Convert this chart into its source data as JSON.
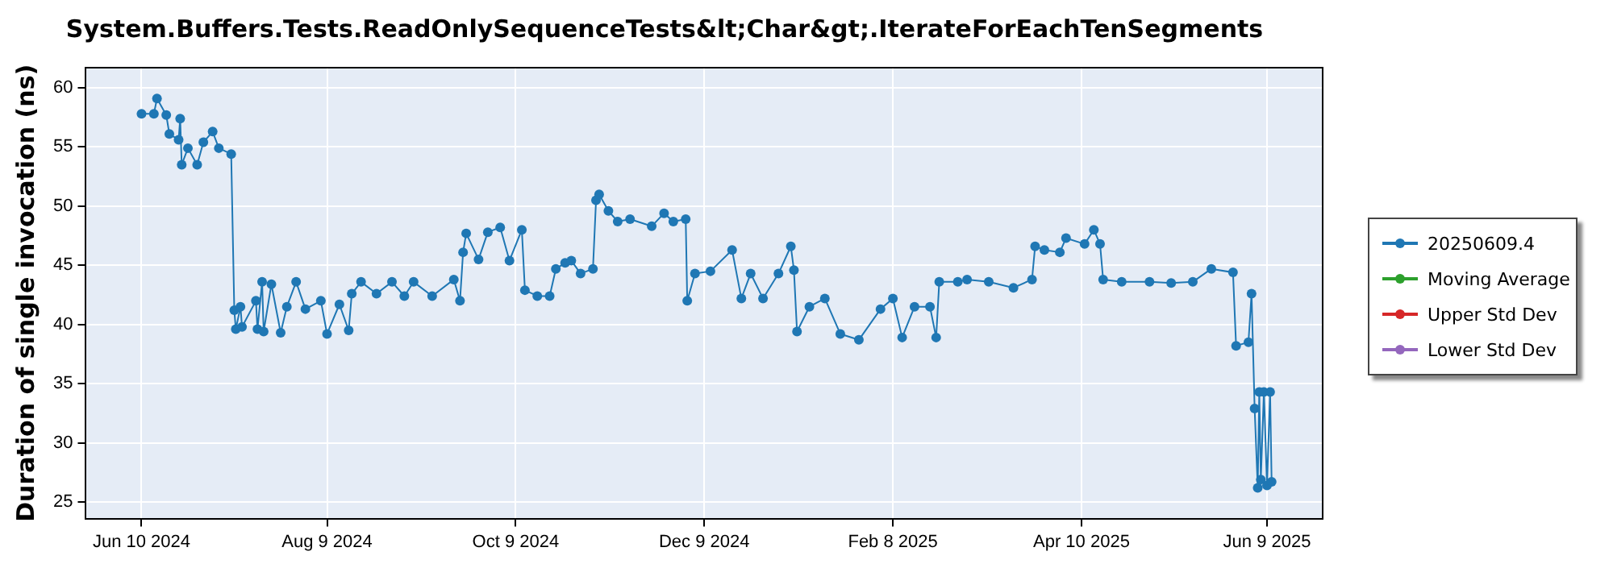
{
  "chart_data": {
    "type": "line",
    "title": "System.Buffers.Tests.ReadOnlySequenceTests&lt;Char&gt;.IterateForEachTenSegments",
    "ylabel": "Duration of single invocation (ns)",
    "xlim": [
      "2024-05-23",
      "2025-06-27"
    ],
    "xticks": [
      {
        "value": "2024-06-10",
        "label": "Jun 10 2024"
      },
      {
        "value": "2024-08-09",
        "label": "Aug 9 2024"
      },
      {
        "value": "2024-10-09",
        "label": "Oct 9 2024"
      },
      {
        "value": "2024-12-09",
        "label": "Dec 9 2024"
      },
      {
        "value": "2025-02-08",
        "label": "Feb 8 2025"
      },
      {
        "value": "2025-04-10",
        "label": "Apr 10 2025"
      },
      {
        "value": "2025-06-09",
        "label": "Jun 9 2025"
      }
    ],
    "ylim": [
      23.6,
      61.7
    ],
    "yticks": [
      25,
      30,
      35,
      40,
      45,
      50,
      55,
      60
    ],
    "grid": true,
    "legend": "right",
    "marker": "circle",
    "line_style": "solid",
    "series": [
      {
        "name": "20250609.4",
        "color": "#1f77b4",
        "x": [
          "2024-06-10",
          "2024-06-14",
          "2024-06-15",
          "2024-06-18",
          "2024-06-19",
          "2024-06-22",
          "2024-06-22T12:00",
          "2024-06-23",
          "2024-06-25",
          "2024-06-28",
          "2024-06-30",
          "2024-07-03",
          "2024-07-05",
          "2024-07-09",
          "2024-07-10",
          "2024-07-10T12:00",
          "2024-07-12",
          "2024-07-12T12:00",
          "2024-07-17",
          "2024-07-17T12:00",
          "2024-07-19",
          "2024-07-19T12:00",
          "2024-07-22",
          "2024-07-25",
          "2024-07-27",
          "2024-07-30",
          "2024-08-02",
          "2024-08-07",
          "2024-08-09",
          "2024-08-13",
          "2024-08-16",
          "2024-08-17",
          "2024-08-20",
          "2024-08-25",
          "2024-08-30",
          "2024-09-03",
          "2024-09-06",
          "2024-09-12",
          "2024-09-19",
          "2024-09-21",
          "2024-09-22",
          "2024-09-23",
          "2024-09-27",
          "2024-09-30",
          "2024-10-04",
          "2024-10-07",
          "2024-10-11",
          "2024-10-12",
          "2024-10-16",
          "2024-10-20",
          "2024-10-22",
          "2024-10-25",
          "2024-10-27",
          "2024-10-30",
          "2024-11-03",
          "2024-11-04",
          "2024-11-05",
          "2024-11-08",
          "2024-11-11",
          "2024-11-15",
          "2024-11-22",
          "2024-11-26",
          "2024-11-29",
          "2024-12-03",
          "2024-12-03T12:00",
          "2024-12-06",
          "2024-12-11",
          "2024-12-18",
          "2024-12-21",
          "2024-12-24",
          "2024-12-28",
          "2025-01-02",
          "2025-01-06",
          "2025-01-07",
          "2025-01-08",
          "2025-01-12",
          "2025-01-17",
          "2025-01-22",
          "2025-01-28",
          "2025-02-04",
          "2025-02-08",
          "2025-02-11",
          "2025-02-15",
          "2025-02-20",
          "2025-02-22",
          "2025-02-23",
          "2025-03-01",
          "2025-03-04",
          "2025-03-11",
          "2025-03-19",
          "2025-03-25",
          "2025-03-26",
          "2025-03-29",
          "2025-04-03",
          "2025-04-05",
          "2025-04-11",
          "2025-04-14",
          "2025-04-16",
          "2025-04-17",
          "2025-04-23",
          "2025-05-02",
          "2025-05-09",
          "2025-05-16",
          "2025-05-22",
          "2025-05-29",
          "2025-05-30",
          "2025-06-03",
          "2025-06-04",
          "2025-06-05",
          "2025-06-06",
          "2025-06-06T12:00",
          "2025-06-07",
          "2025-06-08",
          "2025-06-09",
          "2025-06-10",
          "2025-06-10T12:00"
        ],
        "values": [
          57.8,
          57.8,
          59.1,
          57.7,
          56.1,
          55.6,
          57.4,
          53.5,
          54.9,
          53.5,
          55.4,
          56.3,
          54.9,
          54.4,
          41.2,
          39.6,
          41.5,
          39.8,
          42.0,
          39.6,
          43.6,
          39.4,
          43.4,
          39.3,
          41.5,
          43.6,
          41.3,
          42.0,
          39.2,
          41.7,
          39.5,
          42.6,
          43.6,
          42.6,
          43.6,
          42.4,
          43.6,
          42.4,
          43.8,
          42.0,
          46.1,
          47.7,
          45.5,
          47.8,
          48.2,
          45.4,
          48.0,
          42.9,
          42.4,
          42.4,
          44.7,
          45.2,
          45.4,
          44.3,
          44.7,
          50.5,
          51.0,
          49.6,
          48.7,
          48.9,
          48.3,
          49.4,
          48.7,
          48.9,
          42.0,
          44.3,
          44.5,
          46.3,
          42.2,
          44.3,
          42.2,
          44.3,
          46.6,
          44.6,
          39.4,
          41.5,
          42.2,
          39.2,
          38.7,
          41.3,
          42.2,
          38.9,
          41.5,
          41.5,
          38.9,
          43.6,
          43.6,
          43.8,
          43.6,
          43.1,
          43.8,
          46.6,
          46.3,
          46.1,
          47.3,
          46.8,
          48.0,
          46.8,
          43.8,
          43.6,
          43.6,
          43.5,
          43.6,
          44.7,
          44.4,
          38.2,
          38.5,
          42.6,
          32.9,
          26.2,
          34.3,
          26.9,
          34.3,
          26.4,
          34.3,
          26.7
        ]
      },
      {
        "name": "Moving Average",
        "color": "#2ca02c"
      },
      {
        "name": "Upper Std Dev",
        "color": "#d62728"
      },
      {
        "name": "Lower Std Dev",
        "color": "#9467bd"
      }
    ]
  }
}
